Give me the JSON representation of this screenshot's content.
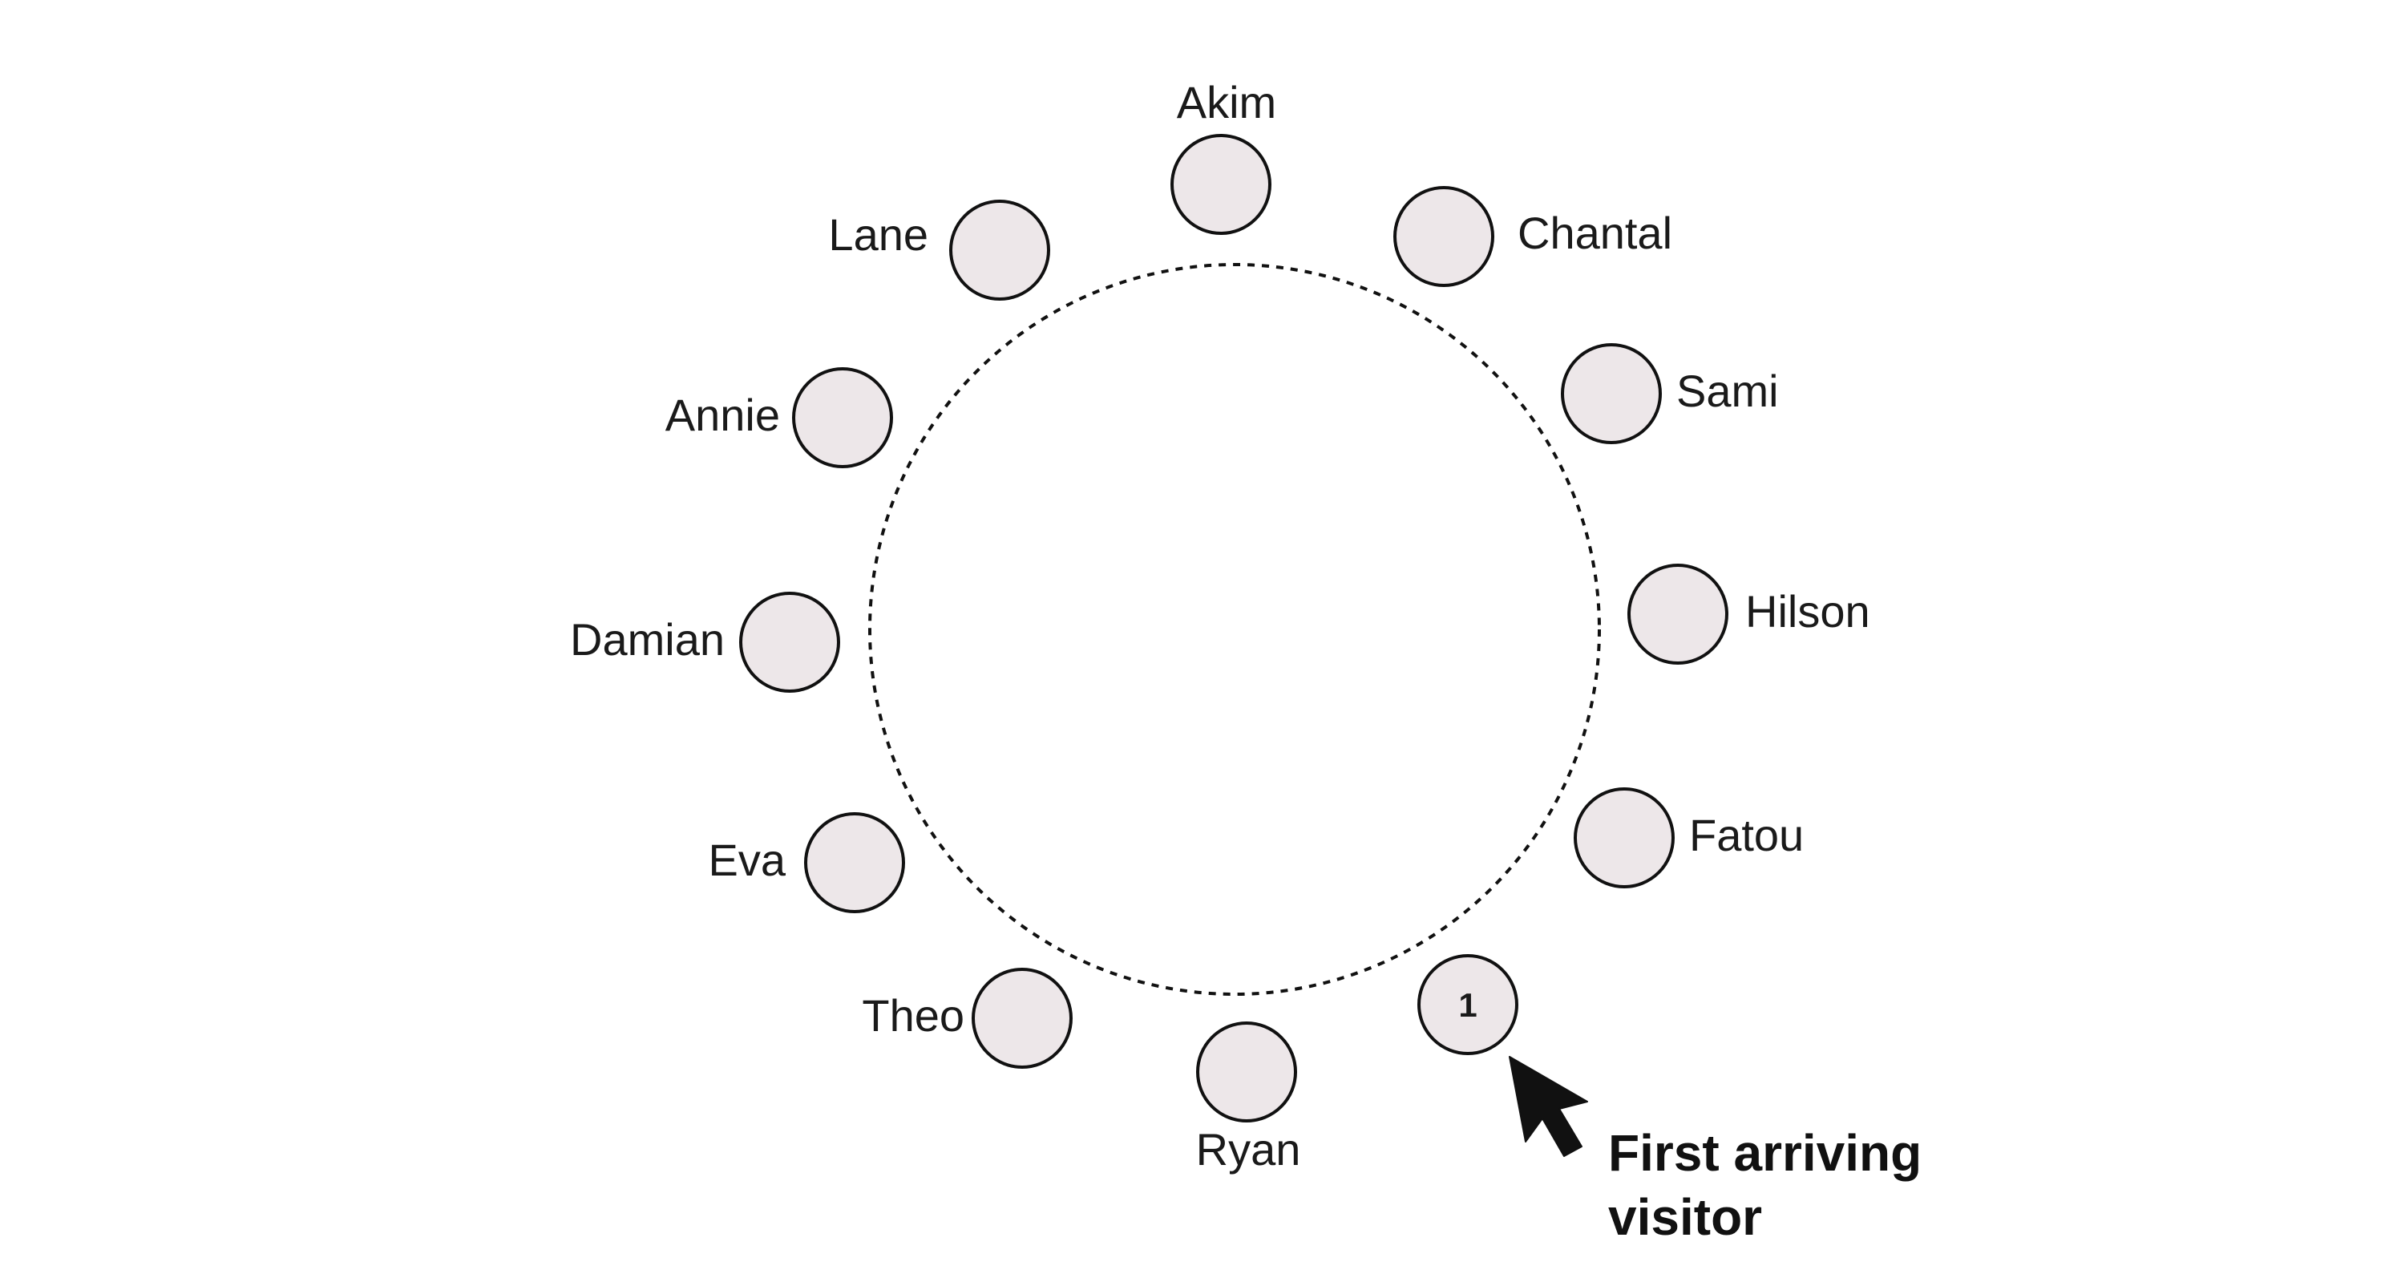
{
  "colors": {
    "seat_fill": "#ede7e9",
    "seat_stroke": "#111111",
    "table_stroke": "#111111",
    "text": "#1a1a1a"
  },
  "table": {
    "style": "dashed-circle"
  },
  "seats": [
    {
      "label": "Akim",
      "number": ""
    },
    {
      "label": "Chantal",
      "number": ""
    },
    {
      "label": "Sami",
      "number": ""
    },
    {
      "label": "Hilson",
      "number": ""
    },
    {
      "label": "Fatou",
      "number": ""
    },
    {
      "label": "",
      "number": "1"
    },
    {
      "label": "Ryan",
      "number": ""
    },
    {
      "label": "Theo",
      "number": ""
    },
    {
      "label": "Eva",
      "number": ""
    },
    {
      "label": "Damian",
      "number": ""
    },
    {
      "label": "Annie",
      "number": ""
    },
    {
      "label": "Lane",
      "number": ""
    }
  ],
  "callout": {
    "line1": "First arriving",
    "line2": "visitor",
    "icon": "cursor-arrow-icon"
  }
}
